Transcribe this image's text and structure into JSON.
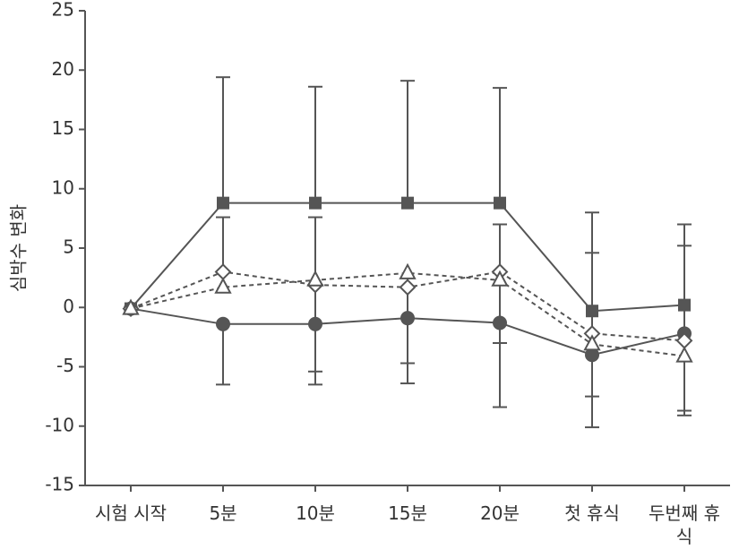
{
  "chart_data": {
    "type": "line",
    "y_label": "심박수 변화",
    "categories": [
      "시험 시작",
      "5분",
      "10분",
      "15분",
      "20분",
      "첫 휴식",
      "두번째 휴식"
    ],
    "ylim": [
      -15,
      25
    ],
    "yticks": [
      -15,
      -10,
      -5,
      0,
      5,
      10,
      15,
      20,
      25
    ],
    "series": [
      {
        "marker": "square",
        "dash": false,
        "color": "#555555",
        "error_direction": "up",
        "values": [
          -0.1,
          8.8,
          8.8,
          8.8,
          8.8,
          -0.3,
          0.2
        ],
        "errors": [
          null,
          10.6,
          9.8,
          10.3,
          9.7,
          8.3,
          6.8
        ]
      },
      {
        "marker": "circle",
        "dash": false,
        "color": "#555555",
        "error_direction": "down",
        "values": [
          -0.1,
          -1.4,
          -1.4,
          -0.9,
          -1.3,
          -4.0,
          -2.2
        ],
        "errors": [
          null,
          5.1,
          5.1,
          5.5,
          7.1,
          6.1,
          6.9
        ]
      },
      {
        "marker": "diamond",
        "dash": true,
        "color": "#555555",
        "error_direction": "up",
        "values": [
          -0.1,
          3.0,
          1.9,
          1.7,
          3.0,
          -2.2,
          -2.8
        ],
        "errors": [
          null,
          4.6,
          5.7,
          null,
          4.0,
          6.8,
          8.0
        ]
      },
      {
        "marker": "triangle",
        "dash": true,
        "color": "#555555",
        "error_direction": "down",
        "values": [
          -0.1,
          1.7,
          2.3,
          2.9,
          2.3,
          -3.1,
          -4.1
        ],
        "errors": [
          null,
          null,
          7.7,
          7.6,
          5.3,
          4.4,
          4.6
        ]
      }
    ]
  }
}
